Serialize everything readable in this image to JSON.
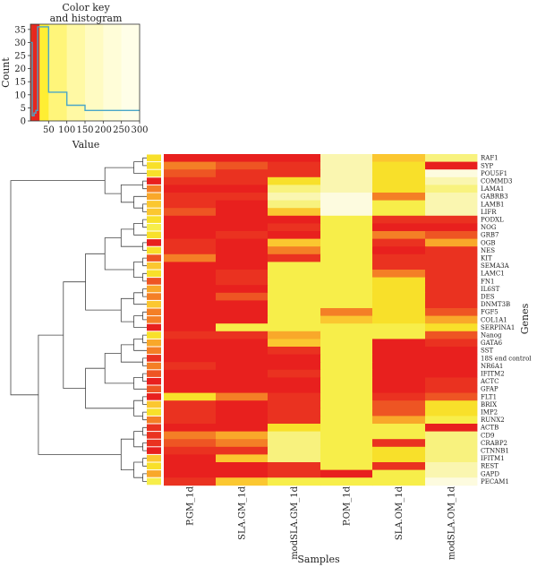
{
  "chart_data": [
    {
      "type": "histogram",
      "title_lines": [
        "Color key",
        "and histogram"
      ],
      "xlabel": "Value",
      "ylabel": "Count",
      "xlim": [
        0,
        300
      ],
      "ylim": [
        0,
        37
      ],
      "x_ticks": [
        "50",
        "100",
        "150",
        "200",
        "250",
        "300"
      ],
      "y_ticks": [
        "0",
        "5",
        "10",
        "15",
        "20",
        "25",
        "30",
        "35"
      ],
      "color_key_bands": [
        {
          "from": 0,
          "to": 5,
          "color": "#d63a1f"
        },
        {
          "from": 5,
          "to": 25,
          "color": "#e8261e"
        },
        {
          "from": 25,
          "to": 50,
          "color": "#ffee33"
        },
        {
          "from": 50,
          "to": 100,
          "color": "#fff57a"
        },
        {
          "from": 100,
          "to": 150,
          "color": "#fff9a4"
        },
        {
          "from": 150,
          "to": 200,
          "color": "#fffbc2"
        },
        {
          "from": 200,
          "to": 250,
          "color": "#fffdd8"
        },
        {
          "from": 250,
          "to": 300,
          "color": "#fffee8"
        }
      ],
      "histogram_line": {
        "color": "#4aa6c8",
        "steps": [
          [
            0,
            30
          ],
          [
            5,
            30
          ],
          [
            5,
            2
          ],
          [
            10,
            2
          ],
          [
            10,
            3
          ],
          [
            15,
            3
          ],
          [
            15,
            4
          ],
          [
            20,
            4
          ],
          [
            20,
            36
          ],
          [
            50,
            36
          ],
          [
            50,
            11
          ],
          [
            100,
            11
          ],
          [
            100,
            6
          ],
          [
            150,
            6
          ],
          [
            150,
            4
          ],
          [
            300,
            4
          ]
        ]
      }
    },
    {
      "type": "heatmap",
      "xlabel": "Samples",
      "ylabel": "Genes",
      "columns": [
        "P.GM_1d",
        "SLA.GM_1d",
        "modSLA.GM_1d",
        "P.OM_1d",
        "SLA.OM_1d",
        "modSLA.OM_1d"
      ],
      "palette": [
        "#e8201e",
        "#ea3220",
        "#ee5523",
        "#f47f26",
        "#f9a82a",
        "#fbc730",
        "#f8e02a",
        "#f7ee4a",
        "#f8f27e",
        "#faf6b0",
        "#fdfbdf"
      ],
      "rows": [
        {
          "gene": "RAF1",
          "side": 6,
          "cells": [
            0,
            0,
            0,
            9,
            5,
            8
          ]
        },
        {
          "gene": "SYP",
          "side": 6,
          "cells": [
            3,
            2,
            1,
            9,
            6,
            0
          ]
        },
        {
          "gene": "POU5F1",
          "side": 6,
          "cells": [
            2,
            1,
            1,
            9,
            6,
            10
          ]
        },
        {
          "gene": "COMMD3",
          "side": 0,
          "cells": [
            1,
            1,
            6,
            9,
            6,
            9
          ]
        },
        {
          "gene": "LAMA1",
          "side": 3,
          "cells": [
            0,
            0,
            8,
            9,
            6,
            8
          ]
        },
        {
          "gene": "GABRB3",
          "side": 4,
          "cells": [
            1,
            1,
            9,
            10,
            3,
            9
          ]
        },
        {
          "gene": "LAMB1",
          "side": 5,
          "cells": [
            1,
            0,
            8,
            10,
            7,
            9
          ]
        },
        {
          "gene": "LIFR",
          "side": 5,
          "cells": [
            2,
            0,
            5,
            10,
            7,
            9
          ]
        },
        {
          "gene": "PODXL",
          "side": 6,
          "cells": [
            0,
            0,
            0,
            7,
            1,
            1
          ]
        },
        {
          "gene": "NOG",
          "side": 7,
          "cells": [
            0,
            0,
            1,
            7,
            0,
            0
          ]
        },
        {
          "gene": "GRB7",
          "side": 6,
          "cells": [
            0,
            1,
            0,
            7,
            3,
            2
          ]
        },
        {
          "gene": "OGB",
          "side": 0,
          "cells": [
            1,
            0,
            5,
            7,
            1,
            4
          ]
        },
        {
          "gene": "NES",
          "side": 6,
          "cells": [
            1,
            0,
            3,
            7,
            0,
            1
          ]
        },
        {
          "gene": "KIT",
          "side": 2,
          "cells": [
            3,
            0,
            1,
            7,
            1,
            1
          ]
        },
        {
          "gene": "SEMA3A",
          "side": 5,
          "cells": [
            0,
            0,
            7,
            7,
            1,
            1
          ]
        },
        {
          "gene": "LAMC1",
          "side": 6,
          "cells": [
            0,
            1,
            7,
            7,
            3,
            1
          ]
        },
        {
          "gene": "FN1",
          "side": 2,
          "cells": [
            0,
            1,
            7,
            7,
            6,
            1
          ]
        },
        {
          "gene": "IL6ST",
          "side": 4,
          "cells": [
            0,
            0,
            7,
            7,
            6,
            1
          ]
        },
        {
          "gene": "DES",
          "side": 3,
          "cells": [
            0,
            2,
            7,
            7,
            6,
            1
          ]
        },
        {
          "gene": "DNMT3B",
          "side": 5,
          "cells": [
            0,
            0,
            7,
            7,
            6,
            1
          ]
        },
        {
          "gene": "FGF5",
          "side": 3,
          "cells": [
            0,
            0,
            7,
            3,
            6,
            2
          ]
        },
        {
          "gene": "COL1A1",
          "side": 3,
          "cells": [
            0,
            0,
            7,
            5,
            6,
            4
          ]
        },
        {
          "gene": "SERPINA1",
          "side": 0,
          "cells": [
            0,
            7,
            7,
            7,
            7,
            6
          ]
        },
        {
          "gene": "Nanog",
          "side": 6,
          "cells": [
            1,
            1,
            4,
            7,
            7,
            2
          ]
        },
        {
          "gene": "GATA6",
          "side": 4,
          "cells": [
            0,
            0,
            5,
            7,
            0,
            1
          ]
        },
        {
          "gene": "SST",
          "side": 3,
          "cells": [
            0,
            0,
            1,
            7,
            0,
            0
          ]
        },
        {
          "gene": "18S end control",
          "side": 1,
          "cells": [
            0,
            0,
            0,
            7,
            0,
            0
          ]
        },
        {
          "gene": "NR6A1",
          "side": 3,
          "cells": [
            1,
            0,
            0,
            7,
            0,
            0
          ]
        },
        {
          "gene": "IFITM2",
          "side": 2,
          "cells": [
            0,
            0,
            1,
            7,
            0,
            0
          ]
        },
        {
          "gene": "ACTC",
          "side": 0,
          "cells": [
            0,
            0,
            0,
            7,
            0,
            1
          ]
        },
        {
          "gene": "GFAP",
          "side": 2,
          "cells": [
            0,
            0,
            0,
            7,
            0,
            1
          ]
        },
        {
          "gene": "FLT1",
          "side": 0,
          "cells": [
            6,
            3,
            1,
            7,
            1,
            2
          ]
        },
        {
          "gene": "BRIX",
          "side": 5,
          "cells": [
            1,
            0,
            1,
            7,
            2,
            6
          ]
        },
        {
          "gene": "IMP2",
          "side": 6,
          "cells": [
            1,
            0,
            1,
            7,
            2,
            6
          ]
        },
        {
          "gene": "RUNX2",
          "side": 3,
          "cells": [
            1,
            0,
            1,
            7,
            4,
            7
          ]
        },
        {
          "gene": "ACTB",
          "side": 1,
          "cells": [
            0,
            0,
            6,
            7,
            7,
            0
          ]
        },
        {
          "gene": "CD9",
          "side": 1,
          "cells": [
            3,
            4,
            8,
            7,
            7,
            8
          ]
        },
        {
          "gene": "CRABP2",
          "side": 1,
          "cells": [
            2,
            3,
            8,
            7,
            1,
            8
          ]
        },
        {
          "gene": "CTNNB1",
          "side": 0,
          "cells": [
            1,
            1,
            8,
            7,
            6,
            8
          ]
        },
        {
          "gene": "IFITM1",
          "side": 5,
          "cells": [
            0,
            5,
            8,
            7,
            6,
            8
          ]
        },
        {
          "gene": "REST",
          "side": 6,
          "cells": [
            0,
            0,
            1,
            7,
            1,
            9
          ]
        },
        {
          "gene": "GAPD",
          "side": 4,
          "cells": [
            0,
            0,
            1,
            0,
            7,
            9
          ]
        },
        {
          "gene": "PECAM1",
          "side": 7,
          "cells": [
            1,
            5,
            7,
            7,
            7,
            10
          ]
        }
      ]
    }
  ]
}
